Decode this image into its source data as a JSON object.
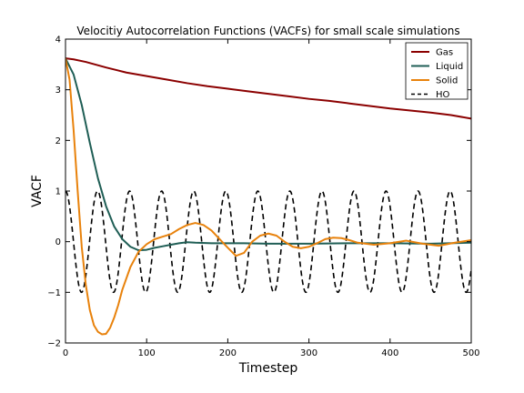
{
  "chart_data": {
    "type": "line",
    "title": "Velocitiy Autocorrelation Functions (VACFs) for small scale simulations",
    "xlabel": "Timestep",
    "ylabel": "VACF",
    "xlim": [
      0,
      500
    ],
    "ylim": [
      -2,
      4
    ],
    "xticks": [
      "0",
      "100",
      "200",
      "300",
      "400",
      "500"
    ],
    "yticks": [
      "−2",
      "−1",
      "0",
      "1",
      "2",
      "3",
      "4"
    ],
    "grid": false,
    "legend_position": "top-right",
    "series": [
      {
        "name": "Gas",
        "color": "#8b0000",
        "style": "solid",
        "x": [
          0,
          10,
          25,
          50,
          75,
          100,
          125,
          150,
          175,
          200,
          225,
          250,
          275,
          300,
          325,
          350,
          375,
          400,
          425,
          450,
          475,
          500
        ],
        "y": [
          3.62,
          3.6,
          3.55,
          3.44,
          3.34,
          3.27,
          3.2,
          3.13,
          3.07,
          3.02,
          2.97,
          2.92,
          2.87,
          2.82,
          2.78,
          2.73,
          2.68,
          2.63,
          2.59,
          2.55,
          2.5,
          2.43
        ]
      },
      {
        "name": "Liquid",
        "color": "#1f5e55",
        "style": "solid",
        "x": [
          0,
          10,
          20,
          30,
          40,
          50,
          60,
          70,
          80,
          90,
          100,
          110,
          120,
          130,
          140,
          150,
          160,
          180,
          200,
          220,
          250,
          300,
          350,
          400,
          450,
          500
        ],
        "y": [
          3.62,
          3.3,
          2.7,
          1.95,
          1.25,
          0.7,
          0.3,
          0.05,
          -0.1,
          -0.17,
          -0.16,
          -0.12,
          -0.09,
          -0.06,
          -0.03,
          -0.01,
          -0.02,
          -0.03,
          -0.03,
          -0.03,
          -0.04,
          -0.04,
          -0.03,
          -0.03,
          -0.04,
          -0.02
        ]
      },
      {
        "name": "Solid",
        "color": "#e8820c",
        "style": "solid",
        "x": [
          0,
          5,
          10,
          15,
          20,
          25,
          30,
          35,
          40,
          45,
          50,
          55,
          60,
          65,
          70,
          80,
          90,
          100,
          110,
          120,
          130,
          140,
          150,
          160,
          170,
          180,
          190,
          200,
          210,
          220,
          230,
          240,
          250,
          260,
          270,
          280,
          290,
          300,
          310,
          320,
          330,
          340,
          350,
          360,
          380,
          400,
          420,
          440,
          460,
          480,
          500
        ],
        "y": [
          3.62,
          3.2,
          2.2,
          1.0,
          -0.1,
          -0.85,
          -1.35,
          -1.65,
          -1.78,
          -1.83,
          -1.82,
          -1.7,
          -1.5,
          -1.25,
          -0.95,
          -0.5,
          -0.2,
          -0.05,
          0.05,
          0.1,
          0.15,
          0.25,
          0.33,
          0.37,
          0.33,
          0.22,
          0.05,
          -0.12,
          -0.28,
          -0.22,
          0.0,
          0.12,
          0.16,
          0.12,
          0.0,
          -0.1,
          -0.13,
          -0.1,
          -0.03,
          0.05,
          0.08,
          0.07,
          0.03,
          -0.02,
          -0.06,
          -0.03,
          0.02,
          -0.04,
          -0.08,
          -0.02,
          0.03
        ]
      },
      {
        "name": "HO",
        "color": "#000000",
        "style": "dashed",
        "function": "cos",
        "amplitude": 1.0,
        "period": 39.5,
        "x_range": [
          0,
          500
        ]
      }
    ]
  }
}
